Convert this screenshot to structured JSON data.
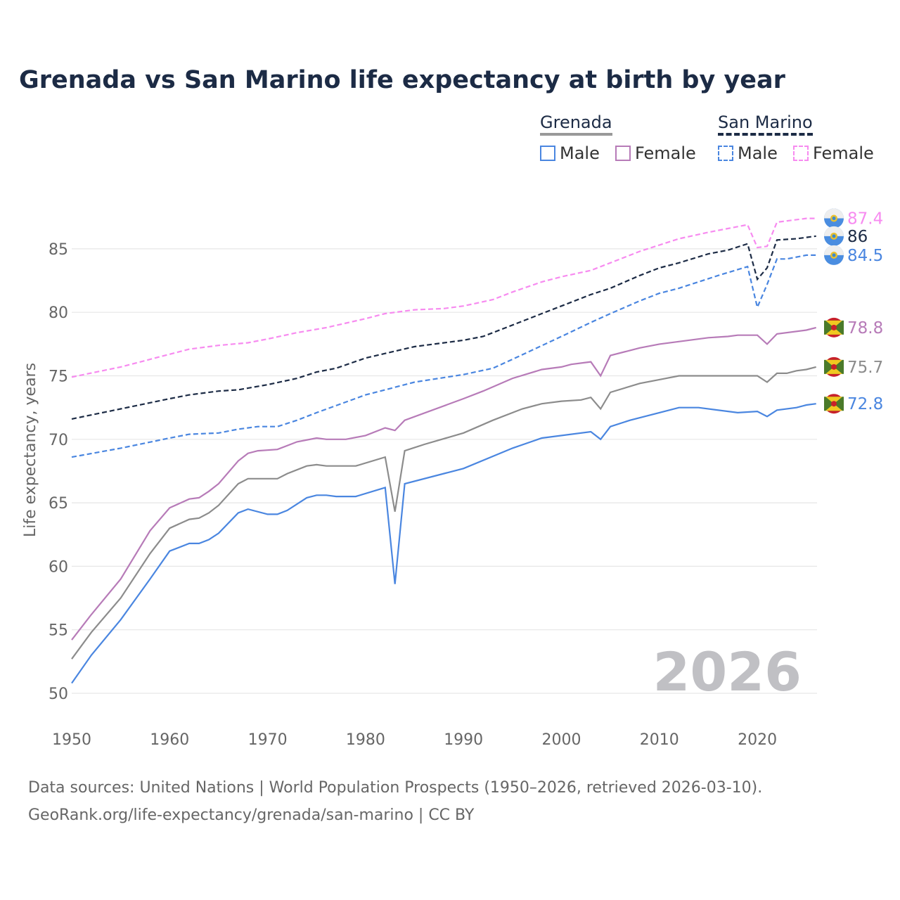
{
  "chart_data": {
    "type": "line",
    "title": "Grenada vs San Marino life expectancy at birth by year",
    "xlabel": "",
    "ylabel": "Life expectancy, years",
    "xlim": [
      1950,
      2026
    ],
    "ylim": [
      50,
      88
    ],
    "x_ticks": [
      "1950",
      "1960",
      "1970",
      "1980",
      "1990",
      "2000",
      "2010",
      "2020"
    ],
    "y_ticks": [
      "50",
      "55",
      "60",
      "65",
      "70",
      "75",
      "80",
      "85"
    ],
    "grid": true,
    "year_watermark": "2026",
    "legend": {
      "placement": "top-right",
      "groups": [
        {
          "name": "Grenada",
          "items": [
            "Male",
            "Female"
          ]
        },
        {
          "name": "San Marino",
          "items": [
            "Male",
            "Female"
          ]
        }
      ]
    },
    "series": [
      {
        "name": "San Marino Female",
        "color": "#f78bf0",
        "dashed": true,
        "end_label": "87.4",
        "flag": "san-marino",
        "points": [
          [
            1950,
            74.9
          ],
          [
            1955,
            75.7
          ],
          [
            1960,
            76.7
          ],
          [
            1962,
            77.1
          ],
          [
            1965,
            77.4
          ],
          [
            1968,
            77.6
          ],
          [
            1970,
            77.9
          ],
          [
            1973,
            78.4
          ],
          [
            1976,
            78.8
          ],
          [
            1980,
            79.5
          ],
          [
            1982,
            79.9
          ],
          [
            1985,
            80.2
          ],
          [
            1988,
            80.3
          ],
          [
            1990,
            80.5
          ],
          [
            1993,
            81.0
          ],
          [
            1995,
            81.6
          ],
          [
            1998,
            82.4
          ],
          [
            2000,
            82.8
          ],
          [
            2003,
            83.3
          ],
          [
            2005,
            83.9
          ],
          [
            2008,
            84.8
          ],
          [
            2010,
            85.3
          ],
          [
            2012,
            85.8
          ],
          [
            2015,
            86.3
          ],
          [
            2017,
            86.6
          ],
          [
            2019,
            86.9
          ],
          [
            2020,
            85.1
          ],
          [
            2021,
            85.2
          ],
          [
            2022,
            87.1
          ],
          [
            2025,
            87.4
          ],
          [
            2026,
            87.4
          ]
        ]
      },
      {
        "name": "San Marino",
        "color": "#1c2b45",
        "dashed": true,
        "end_label": "86",
        "flag": "san-marino",
        "points": [
          [
            1950,
            71.6
          ],
          [
            1955,
            72.4
          ],
          [
            1960,
            73.2
          ],
          [
            1962,
            73.5
          ],
          [
            1965,
            73.8
          ],
          [
            1967,
            73.9
          ],
          [
            1970,
            74.3
          ],
          [
            1973,
            74.8
          ],
          [
            1975,
            75.3
          ],
          [
            1977,
            75.6
          ],
          [
            1980,
            76.4
          ],
          [
            1985,
            77.3
          ],
          [
            1990,
            77.8
          ],
          [
            1992,
            78.1
          ],
          [
            1995,
            79.0
          ],
          [
            1998,
            79.9
          ],
          [
            2000,
            80.5
          ],
          [
            2003,
            81.4
          ],
          [
            2005,
            81.9
          ],
          [
            2008,
            82.9
          ],
          [
            2010,
            83.5
          ],
          [
            2012,
            83.9
          ],
          [
            2015,
            84.6
          ],
          [
            2017,
            84.9
          ],
          [
            2019,
            85.4
          ],
          [
            2020,
            82.6
          ],
          [
            2021,
            83.5
          ],
          [
            2022,
            85.7
          ],
          [
            2024,
            85.8
          ],
          [
            2026,
            86.0
          ]
        ]
      },
      {
        "name": "San Marino Male",
        "color": "#4a86e0",
        "dashed": true,
        "end_label": "84.5",
        "flag": "san-marino",
        "points": [
          [
            1950,
            68.6
          ],
          [
            1955,
            69.3
          ],
          [
            1960,
            70.1
          ],
          [
            1962,
            70.4
          ],
          [
            1965,
            70.5
          ],
          [
            1967,
            70.8
          ],
          [
            1969,
            71.0
          ],
          [
            1971,
            71.0
          ],
          [
            1973,
            71.5
          ],
          [
            1975,
            72.1
          ],
          [
            1980,
            73.5
          ],
          [
            1982,
            73.9
          ],
          [
            1985,
            74.5
          ],
          [
            1990,
            75.1
          ],
          [
            1993,
            75.6
          ],
          [
            1995,
            76.3
          ],
          [
            2000,
            78.1
          ],
          [
            2003,
            79.2
          ],
          [
            2005,
            79.9
          ],
          [
            2008,
            80.9
          ],
          [
            2010,
            81.5
          ],
          [
            2012,
            81.9
          ],
          [
            2014,
            82.4
          ],
          [
            2016,
            82.9
          ],
          [
            2019,
            83.6
          ],
          [
            2020,
            80.4
          ],
          [
            2021,
            82.2
          ],
          [
            2022,
            84.2
          ],
          [
            2023,
            84.2
          ],
          [
            2025,
            84.5
          ],
          [
            2026,
            84.5
          ]
        ]
      },
      {
        "name": "Grenada Female",
        "color": "#b77bb8",
        "dashed": false,
        "end_label": "78.8",
        "flag": "grenada",
        "points": [
          [
            1950,
            54.2
          ],
          [
            1952,
            56.2
          ],
          [
            1955,
            59.0
          ],
          [
            1958,
            62.8
          ],
          [
            1960,
            64.6
          ],
          [
            1962,
            65.3
          ],
          [
            1963,
            65.4
          ],
          [
            1964,
            65.9
          ],
          [
            1965,
            66.5
          ],
          [
            1967,
            68.3
          ],
          [
            1968,
            68.9
          ],
          [
            1969,
            69.1
          ],
          [
            1971,
            69.2
          ],
          [
            1973,
            69.8
          ],
          [
            1975,
            70.1
          ],
          [
            1976,
            70.0
          ],
          [
            1978,
            70.0
          ],
          [
            1980,
            70.3
          ],
          [
            1982,
            70.9
          ],
          [
            1983,
            70.7
          ],
          [
            1984,
            71.5
          ],
          [
            1990,
            73.2
          ],
          [
            1992,
            73.8
          ],
          [
            1995,
            74.8
          ],
          [
            1998,
            75.5
          ],
          [
            2000,
            75.7
          ],
          [
            2001,
            75.9
          ],
          [
            2003,
            76.1
          ],
          [
            2004,
            75.0
          ],
          [
            2005,
            76.6
          ],
          [
            2008,
            77.2
          ],
          [
            2010,
            77.5
          ],
          [
            2015,
            78.0
          ],
          [
            2017,
            78.1
          ],
          [
            2018,
            78.2
          ],
          [
            2020,
            78.2
          ],
          [
            2021,
            77.5
          ],
          [
            2022,
            78.3
          ],
          [
            2025,
            78.6
          ],
          [
            2026,
            78.8
          ]
        ]
      },
      {
        "name": "Grenada",
        "color": "#8c8c8c",
        "dashed": false,
        "end_label": "75.7",
        "flag": "grenada",
        "points": [
          [
            1950,
            52.7
          ],
          [
            1952,
            54.8
          ],
          [
            1955,
            57.5
          ],
          [
            1958,
            61.0
          ],
          [
            1960,
            63.0
          ],
          [
            1962,
            63.7
          ],
          [
            1963,
            63.8
          ],
          [
            1964,
            64.2
          ],
          [
            1965,
            64.8
          ],
          [
            1967,
            66.5
          ],
          [
            1968,
            66.9
          ],
          [
            1970,
            66.9
          ],
          [
            1971,
            66.9
          ],
          [
            1972,
            67.3
          ],
          [
            1974,
            67.9
          ],
          [
            1975,
            68.0
          ],
          [
            1976,
            67.9
          ],
          [
            1979,
            67.9
          ],
          [
            1982,
            68.6
          ],
          [
            1983,
            64.3
          ],
          [
            1984,
            69.1
          ],
          [
            1986,
            69.6
          ],
          [
            1990,
            70.5
          ],
          [
            1993,
            71.5
          ],
          [
            1996,
            72.4
          ],
          [
            1998,
            72.8
          ],
          [
            2000,
            73.0
          ],
          [
            2002,
            73.1
          ],
          [
            2003,
            73.3
          ],
          [
            2004,
            72.4
          ],
          [
            2005,
            73.7
          ],
          [
            2008,
            74.4
          ],
          [
            2010,
            74.7
          ],
          [
            2012,
            75.0
          ],
          [
            2020,
            75.0
          ],
          [
            2021,
            74.5
          ],
          [
            2022,
            75.2
          ],
          [
            2023,
            75.2
          ],
          [
            2024,
            75.4
          ],
          [
            2025,
            75.5
          ],
          [
            2026,
            75.7
          ]
        ]
      },
      {
        "name": "Grenada Male",
        "color": "#4a86e0",
        "dashed": false,
        "end_label": "72.8",
        "flag": "grenada",
        "points": [
          [
            1950,
            50.8
          ],
          [
            1952,
            53.0
          ],
          [
            1955,
            55.8
          ],
          [
            1958,
            59.0
          ],
          [
            1960,
            61.2
          ],
          [
            1962,
            61.8
          ],
          [
            1963,
            61.8
          ],
          [
            1964,
            62.1
          ],
          [
            1965,
            62.6
          ],
          [
            1967,
            64.2
          ],
          [
            1968,
            64.5
          ],
          [
            1970,
            64.1
          ],
          [
            1971,
            64.1
          ],
          [
            1972,
            64.4
          ],
          [
            1974,
            65.4
          ],
          [
            1975,
            65.6
          ],
          [
            1976,
            65.6
          ],
          [
            1977,
            65.5
          ],
          [
            1979,
            65.5
          ],
          [
            1982,
            66.2
          ],
          [
            1983,
            58.6
          ],
          [
            1984,
            66.5
          ],
          [
            1990,
            67.7
          ],
          [
            1995,
            69.3
          ],
          [
            1998,
            70.1
          ],
          [
            2003,
            70.6
          ],
          [
            2004,
            70.0
          ],
          [
            2005,
            71.0
          ],
          [
            2007,
            71.5
          ],
          [
            2010,
            72.1
          ],
          [
            2012,
            72.5
          ],
          [
            2014,
            72.5
          ],
          [
            2018,
            72.1
          ],
          [
            2020,
            72.2
          ],
          [
            2021,
            71.8
          ],
          [
            2022,
            72.3
          ],
          [
            2024,
            72.5
          ],
          [
            2025,
            72.7
          ],
          [
            2026,
            72.8
          ]
        ]
      }
    ]
  },
  "footer": {
    "line1": "Data sources: United Nations | World Population Prospects (1950–2026, retrieved 2026-03-10).",
    "line2": "GeoRank.org/life-expectancy/grenada/san-marino | CC BY"
  }
}
